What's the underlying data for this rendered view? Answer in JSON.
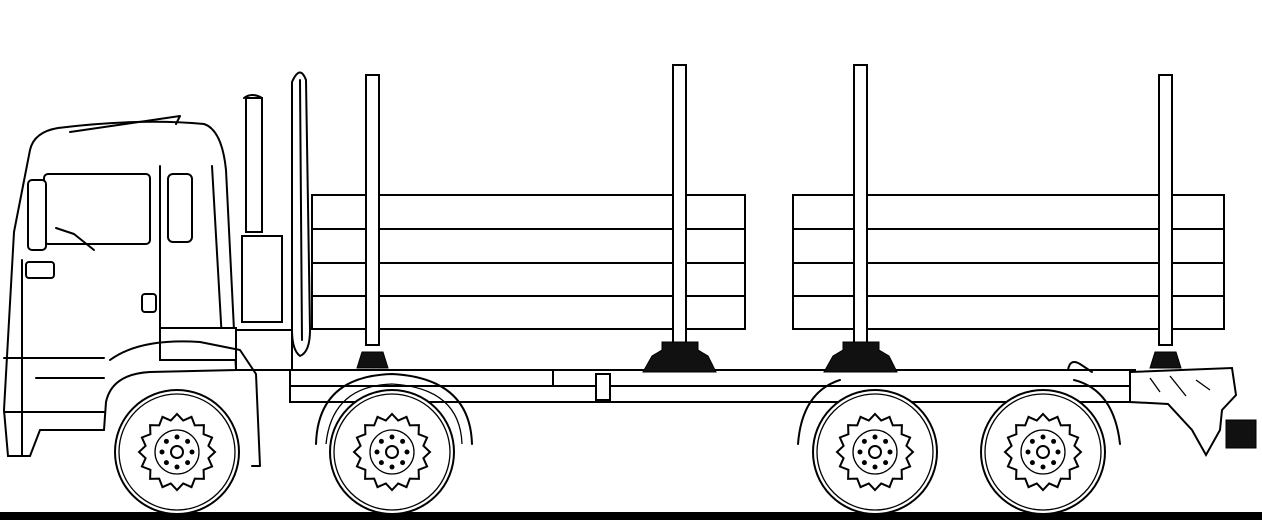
{
  "drawing": {
    "subject": "timber-truck-side-view",
    "line_color": "#000000",
    "background_color": "#ffffff",
    "axles": 4,
    "stakes": 4,
    "log_bundles": 2,
    "logs_per_bundle": 4
  }
}
